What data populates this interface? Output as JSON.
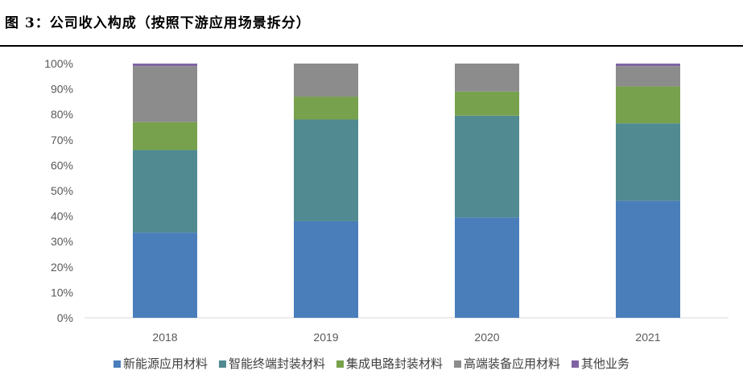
{
  "title": "图 3：公司收入构成（按照下游应用场景拆分）",
  "chart_data": {
    "type": "bar",
    "stacked": true,
    "categories": [
      "2018",
      "2019",
      "2020",
      "2021"
    ],
    "ylim": [
      0,
      100
    ],
    "yticks": [
      "0%",
      "10%",
      "20%",
      "30%",
      "40%",
      "50%",
      "60%",
      "70%",
      "80%",
      "90%",
      "100%"
    ],
    "grid": false,
    "legend_position": "bottom",
    "series": [
      {
        "name": "新能源应用材料",
        "color": "#4A7EBB",
        "values": [
          33.5,
          38,
          39.5,
          46
        ]
      },
      {
        "name": "智能终端封装材料",
        "color": "#518A90",
        "values": [
          32.5,
          40,
          40,
          30.5
        ]
      },
      {
        "name": "集成电路封装材料",
        "color": "#77A14D",
        "values": [
          11,
          9,
          9.5,
          14.5
        ]
      },
      {
        "name": "高端装备应用材料",
        "color": "#8C8C8C",
        "values": [
          22,
          13,
          11,
          8
        ]
      },
      {
        "name": "其他业务",
        "color": "#8064A2",
        "values": [
          1,
          0,
          0,
          1
        ]
      }
    ]
  }
}
